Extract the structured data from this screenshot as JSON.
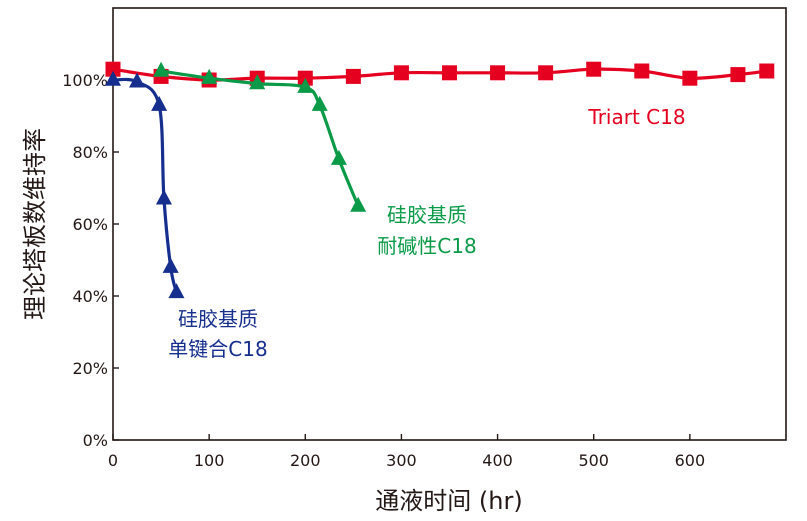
{
  "chart_data": {
    "type": "line",
    "title": "",
    "xlabel": "通液时间 (hr)",
    "ylabel": "理论塔板数维持率",
    "xlim": [
      0,
      700
    ],
    "ylim": [
      0,
      120
    ],
    "xticks": [
      0,
      100,
      200,
      300,
      400,
      500,
      600
    ],
    "xtick_labels": [
      "0",
      "100",
      "200",
      "300",
      "400",
      "500",
      "600"
    ],
    "yticks": [
      0,
      20,
      40,
      60,
      80,
      100
    ],
    "ytick_labels": [
      "0%",
      "20%",
      "40%",
      "60%",
      "80%",
      "100%"
    ],
    "grid": false,
    "series": [
      {
        "name": "Triart C18",
        "label_lines": [
          "Triart C18"
        ],
        "color": "#e60020",
        "marker": "square",
        "x": [
          0,
          50,
          100,
          150,
          200,
          250,
          300,
          350,
          400,
          450,
          500,
          550,
          600,
          650,
          680
        ],
        "y": [
          103,
          101,
          100,
          100.5,
          100.5,
          101,
          102,
          102,
          102,
          102,
          103,
          102.5,
          100.5,
          101.5,
          102.5
        ]
      },
      {
        "name": "硅胶基质 耐碱性C18",
        "label_lines": [
          "硅胶基质",
          "耐碱性C18"
        ],
        "color": "#0a9a48",
        "marker": "triangle",
        "x": [
          50,
          100,
          150,
          200,
          215,
          235,
          255
        ],
        "y": [
          102.5,
          100.5,
          99,
          98,
          93,
          78,
          65
        ]
      },
      {
        "name": "硅胶基质 单键合C18",
        "label_lines": [
          "硅胶基质",
          "单键合C18"
        ],
        "color": "#162e8e",
        "marker": "triangle",
        "x": [
          0,
          25,
          48,
          53,
          60,
          66
        ],
        "y": [
          100,
          99.5,
          93,
          67,
          48,
          41
        ]
      }
    ]
  }
}
